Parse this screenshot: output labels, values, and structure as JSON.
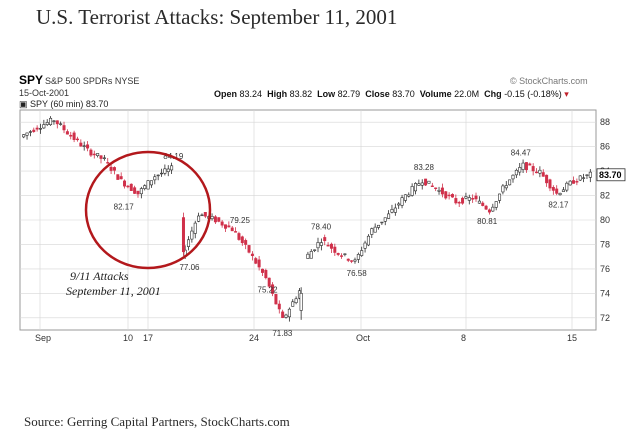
{
  "page": {
    "title": "U.S. Terrorist Attacks: September 11, 2001",
    "source": "Source: Gerring Capital Partners, StockCharts.com"
  },
  "header": {
    "symbol": "SPY",
    "name": "S&P 500 SPDRs NYSE",
    "date": "15-Oct-2001",
    "credit": "© StockCharts.com",
    "open_label": "Open",
    "open": "83.24",
    "high_label": "High",
    "high": "83.82",
    "low_label": "Low",
    "low": "82.79",
    "close_label": "Close",
    "close": "83.70",
    "volume_label": "Volume",
    "volume": "22.0M",
    "chg_label": "Chg",
    "chg": "-0.15 (-0.18%)",
    "series_label": "SPY (60 min) 83.70"
  },
  "annotation": {
    "line1": "9/11 Attacks",
    "line2": "September 11, 2001"
  },
  "colors": {
    "up": "#2b2b2b",
    "down": "#d0304a",
    "circle": "#b3181c",
    "grid": "#d6d6d6",
    "last_label_bg": "#ffffff"
  },
  "chart_data": {
    "type": "candlestick",
    "interval": "60 min",
    "ylim": [
      71,
      89
    ],
    "yticks": [
      72,
      74,
      76,
      78,
      80,
      82,
      84,
      86,
      88
    ],
    "xticks": [
      "Sep",
      "10",
      "17",
      "24",
      "Oct",
      "8",
      "15"
    ],
    "last_value": "83.70",
    "points": [
      {
        "x": "Sep 4",
        "y": 86.8
      },
      {
        "x": "Sep 5",
        "y": 87.6
      },
      {
        "x": "Sep 6",
        "y": 88.2
      },
      {
        "x": "Sep 6",
        "y": 86.9
      },
      {
        "x": "Sep 7",
        "y": 85.7
      },
      {
        "x": "Sep 7",
        "y": 84.9
      },
      {
        "x": "Sep 10",
        "y": 83.2
      },
      {
        "x": "Sep 10",
        "y": 82.17
      },
      {
        "x": "Sep 10",
        "y": 83.6
      },
      {
        "x": "Sep 10",
        "y": 84.19
      },
      {
        "x": "Sep 17",
        "y": 77.06
      },
      {
        "x": "Sep 17",
        "y": 80.5
      },
      {
        "x": "Sep 18",
        "y": 80.0
      },
      {
        "x": "Sep 19",
        "y": 79.25
      },
      {
        "x": "Sep 20",
        "y": 77.4
      },
      {
        "x": "Sep 20",
        "y": 75.22
      },
      {
        "x": "Sep 21",
        "y": 71.83
      },
      {
        "x": "Sep 21",
        "y": 74.2
      },
      {
        "x": "Sep 24",
        "y": 76.8
      },
      {
        "x": "Sep 26",
        "y": 78.4
      },
      {
        "x": "Sep 27",
        "y": 77.3
      },
      {
        "x": "Sep 28",
        "y": 76.58
      },
      {
        "x": "Sep 28",
        "y": 79.2
      },
      {
        "x": "Oct 2",
        "y": 80.4
      },
      {
        "x": "Oct 4",
        "y": 82.0
      },
      {
        "x": "Oct 5",
        "y": 83.28
      },
      {
        "x": "Oct 5",
        "y": 82.4
      },
      {
        "x": "Oct 8",
        "y": 81.5
      },
      {
        "x": "Oct 9",
        "y": 81.8
      },
      {
        "x": "Oct 10",
        "y": 80.81
      },
      {
        "x": "Oct 11",
        "y": 83.0
      },
      {
        "x": "Oct 11",
        "y": 84.47
      },
      {
        "x": "Oct 12",
        "y": 83.9
      },
      {
        "x": "Oct 12",
        "y": 82.17
      },
      {
        "x": "Oct 15",
        "y": 83.2
      },
      {
        "x": "Oct 15",
        "y": 83.7
      }
    ],
    "labels": [
      {
        "x": "Sep 10",
        "y": 84.19,
        "text": "84.19"
      },
      {
        "x": "Sep 10",
        "y": 82.17,
        "text": "82.17"
      },
      {
        "x": "Sep 17",
        "y": 77.06,
        "text": "77.06"
      },
      {
        "x": "Sep 19",
        "y": 79.25,
        "text": "79.25"
      },
      {
        "x": "Sep 20",
        "y": 75.22,
        "text": "75.22"
      },
      {
        "x": "Sep 21",
        "y": 71.83,
        "text": "71.83"
      },
      {
        "x": "Sep 26",
        "y": 78.4,
        "text": "78.40"
      },
      {
        "x": "Sep 28",
        "y": 76.58,
        "text": "76.58"
      },
      {
        "x": "Oct 5",
        "y": 83.28,
        "text": "83.28"
      },
      {
        "x": "Oct 10",
        "y": 80.81,
        "text": "80.81"
      },
      {
        "x": "Oct 11",
        "y": 84.47,
        "text": "84.47"
      },
      {
        "x": "Oct 12",
        "y": 82.17,
        "text": "82.17"
      }
    ]
  }
}
